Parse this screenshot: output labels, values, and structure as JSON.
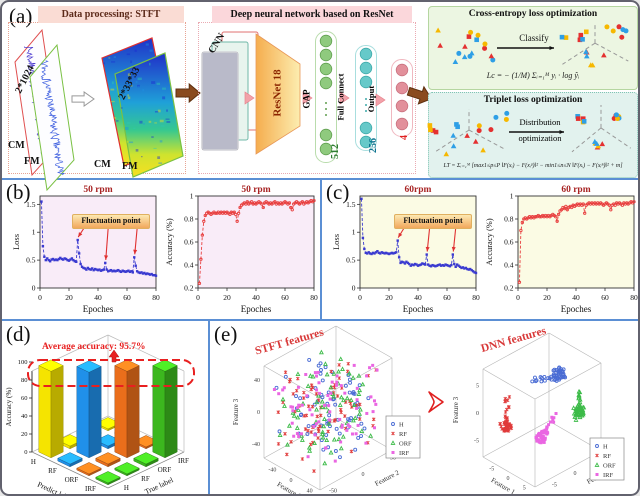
{
  "figure": {
    "background": "#ffffff",
    "divider_color": "#5b8fd4"
  },
  "panels": {
    "a": {
      "label": "(a)",
      "stft": {
        "title": "Data processing: STFT",
        "input_dim": "2*1024",
        "cm": "CM",
        "fm": "FM",
        "output_dim": "2*33*33",
        "cm2": "CM",
        "fm2": "FM"
      },
      "dnn": {
        "title": "Deep neural network based on ResNet",
        "cnn": "CNN",
        "resnet": "ResNet 18",
        "gap": "GAP",
        "fc": "Full Connect",
        "out": "Output",
        "n512": "512",
        "n256": "256",
        "n4": "4"
      },
      "ce": {
        "title": "Cross-entropy loss optimization",
        "classify": "Classify",
        "formula": "Lc = − (1/M) Σᵢ₌₁ᴹ yᵢ · log ŷᵢ"
      },
      "triplet": {
        "title": "Triplet loss optimization",
        "dist1": "Distribution",
        "dist2": "optimization",
        "formula": "LT = Σᵢ₌₁ᴹ [max1≤p≤P ‖F(xᵢ) − F(xᵢᵖ)‖² − min1≤n≤N ‖F(xᵢ) − F(xᵢⁿ)‖² + m]"
      }
    },
    "b": {
      "label": "(b)",
      "fluctuation": "Fluctuation point"
    },
    "c": {
      "label": "(c)",
      "fluctuation": "Fluctuation point"
    },
    "d": {
      "label": "(d)",
      "avg_text": "Average accuracy: 95.7%"
    },
    "e": {
      "label": "(e)",
      "stft_title": "STFT features",
      "dnn_title": "DNN features"
    }
  },
  "class_colors": {
    "H": "#4a6cd4",
    "RF": "#e03a3a",
    "ORF": "#3cbb48",
    "IRF": "#ea66e2"
  },
  "bar_colors": {
    "H": "#ffee00",
    "RF": "#2196f3",
    "ORF": "#f4731c",
    "IRF": "#3fbf1f"
  },
  "shape_colors": [
    "#e43030",
    "#f6b800",
    "#2e9fe6"
  ],
  "chart_data": [
    {
      "type": "line",
      "name": "loss_50rpm",
      "title": "50 rpm",
      "xlabel": "Epoches",
      "ylabel": "Loss",
      "xlim": [
        0,
        80
      ],
      "ylim": [
        0,
        1.65
      ],
      "xticks": [
        0,
        20,
        40,
        60,
        80
      ],
      "yticks": [
        0,
        0.5,
        1,
        1.5
      ],
      "color": "#3a3ad0",
      "bg": "#f9ecf8",
      "fluctuation_epochs": [
        26,
        45,
        65
      ],
      "values": [
        1.55,
        0.75,
        0.56,
        0.5,
        0.53,
        0.5,
        0.48,
        0.51,
        0.52,
        0.5,
        0.51,
        0.5,
        0.52,
        0.54,
        0.52,
        0.51,
        0.53,
        0.52,
        0.5,
        0.49,
        0.51,
        0.53,
        0.5,
        0.48,
        0.47,
        0.86,
        0.62,
        0.43,
        0.38,
        0.36,
        0.35,
        0.33,
        0.36,
        0.34,
        0.33,
        0.35,
        0.32,
        0.34,
        0.33,
        0.32,
        0.33,
        0.31,
        0.32,
        0.33,
        0.45,
        0.33,
        0.3,
        0.31,
        0.32,
        0.3,
        0.31,
        0.3,
        0.31,
        0.32,
        0.3,
        0.29,
        0.31,
        0.3,
        0.29,
        0.3,
        0.31,
        0.29,
        0.3,
        0.28,
        0.55,
        0.4,
        0.3,
        0.28,
        0.27,
        0.28,
        0.26,
        0.27,
        0.25,
        0.26,
        0.25,
        0.24,
        0.25,
        0.23,
        0.23,
        0.22
      ]
    },
    {
      "type": "line",
      "name": "accuracy_50rpm",
      "title": "50 rpm",
      "xlabel": "Epoches",
      "ylabel": "Accuracy (%)",
      "xlim": [
        0,
        80
      ],
      "ylim": [
        0.2,
        1.0
      ],
      "xticks": [
        0,
        20,
        40,
        60,
        80
      ],
      "yticks": [
        0.2,
        0.4,
        0.6,
        0.8,
        1
      ],
      "color": "#e84040",
      "bg": "#f9ecf8",
      "values": [
        0.24,
        0.45,
        0.66,
        0.78,
        0.83,
        0.85,
        0.86,
        0.85,
        0.84,
        0.85,
        0.86,
        0.85,
        0.85,
        0.86,
        0.85,
        0.86,
        0.85,
        0.86,
        0.85,
        0.86,
        0.85,
        0.84,
        0.86,
        0.85,
        0.86,
        0.84,
        0.78,
        0.85,
        0.9,
        0.92,
        0.93,
        0.94,
        0.93,
        0.95,
        0.93,
        0.94,
        0.95,
        0.93,
        0.94,
        0.93,
        0.94,
        0.95,
        0.94,
        0.93,
        0.9,
        0.94,
        0.95,
        0.94,
        0.93,
        0.94,
        0.93,
        0.94,
        0.95,
        0.93,
        0.94,
        0.93,
        0.94,
        0.93,
        0.94,
        0.95,
        0.94,
        0.93,
        0.94,
        0.9,
        0.88,
        0.93,
        0.94,
        0.95,
        0.94,
        0.93,
        0.94,
        0.95,
        0.93,
        0.94,
        0.95,
        0.94,
        0.95,
        0.96,
        0.95,
        0.96
      ]
    },
    {
      "type": "line",
      "name": "loss_60rpm",
      "title": "60rpm",
      "xlabel": "Epoches",
      "ylabel": "Loss",
      "xlim": [
        0,
        80
      ],
      "ylim": [
        0,
        1.65
      ],
      "xticks": [
        0,
        20,
        40,
        60,
        80
      ],
      "yticks": [
        0,
        0.5,
        1,
        1.5
      ],
      "color": "#3a3ad0",
      "bg": "#fbfbe4",
      "fluctuation_epochs": [
        26,
        46,
        64
      ],
      "values": [
        1.6,
        0.9,
        0.7,
        0.63,
        0.62,
        0.64,
        0.62,
        0.61,
        0.63,
        0.62,
        0.64,
        0.66,
        0.63,
        0.62,
        0.64,
        0.63,
        0.62,
        0.63,
        0.62,
        0.61,
        0.62,
        0.63,
        0.62,
        0.63,
        0.64,
        0.85,
        0.55,
        0.45,
        0.47,
        0.46,
        0.44,
        0.47,
        0.45,
        0.43,
        0.4,
        0.42,
        0.41,
        0.43,
        0.42,
        0.4,
        0.41,
        0.42,
        0.44,
        0.43,
        0.42,
        0.6,
        0.42,
        0.4,
        0.39,
        0.41,
        0.4,
        0.39,
        0.4,
        0.41,
        0.42,
        0.4,
        0.41,
        0.4,
        0.42,
        0.41,
        0.4,
        0.39,
        0.41,
        0.6,
        0.43,
        0.38,
        0.42,
        0.4,
        0.38,
        0.36,
        0.37,
        0.35,
        0.36,
        0.34,
        0.33,
        0.34,
        0.32,
        0.3,
        0.28,
        0.27
      ]
    },
    {
      "type": "line",
      "name": "accuracy_60rpm",
      "title": "60 rpm",
      "xlabel": "Epoches",
      "ylabel": "Accuracy (%)",
      "xlim": [
        0,
        80
      ],
      "ylim": [
        0.2,
        1.0
      ],
      "xticks": [
        0,
        20,
        40,
        60,
        80
      ],
      "yticks": [
        0.2,
        0.4,
        0.6,
        0.8,
        1
      ],
      "color": "#e84040",
      "bg": "#fbfbe4",
      "values": [
        0.25,
        0.7,
        0.77,
        0.8,
        0.81,
        0.8,
        0.81,
        0.82,
        0.81,
        0.82,
        0.81,
        0.82,
        0.82,
        0.83,
        0.82,
        0.82,
        0.83,
        0.82,
        0.83,
        0.82,
        0.83,
        0.82,
        0.83,
        0.84,
        0.83,
        0.82,
        0.78,
        0.84,
        0.87,
        0.88,
        0.9,
        0.89,
        0.91,
        0.88,
        0.9,
        0.91,
        0.9,
        0.92,
        0.91,
        0.92,
        0.93,
        0.92,
        0.93,
        0.92,
        0.93,
        0.85,
        0.92,
        0.93,
        0.94,
        0.93,
        0.94,
        0.93,
        0.94,
        0.93,
        0.94,
        0.93,
        0.94,
        0.93,
        0.92,
        0.93,
        0.94,
        0.93,
        0.92,
        0.88,
        0.92,
        0.93,
        0.92,
        0.94,
        0.93,
        0.94,
        0.93,
        0.92,
        0.94,
        0.93,
        0.94,
        0.93,
        0.94,
        0.95,
        0.94,
        0.95
      ]
    },
    {
      "type": "bar3d",
      "name": "confusion_matrix",
      "zlabel": "Accuracy (%)",
      "predict_axis_label": "Predict label",
      "true_axis_label": "True label",
      "categories": [
        "H",
        "RF",
        "ORF",
        "IRF"
      ],
      "zticks": [
        0,
        20,
        40,
        60,
        80,
        100
      ],
      "average_accuracy": 95.7,
      "values": [
        [
          96,
          3,
          2,
          2
        ],
        [
          3,
          95,
          3,
          2
        ],
        [
          2,
          3,
          96,
          2
        ],
        [
          2,
          2,
          3,
          96
        ]
      ]
    },
    {
      "type": "scatter3d",
      "name": "stft_features",
      "title": "STFT features",
      "xlabel": "Feature 1",
      "ylabel": "Feature 2",
      "zlabel": "Feature 3",
      "xticks": [
        -40,
        0,
        40
      ],
      "yticks": [
        -50,
        0,
        50
      ],
      "zticks": [
        -40,
        0,
        40
      ],
      "legend": [
        "H",
        "RF",
        "ORF",
        "IRF"
      ],
      "distribution": "mixed",
      "points_per_class": 72,
      "range": [
        -60,
        60
      ]
    },
    {
      "type": "scatter3d",
      "name": "dnn_features",
      "title": "DNN features",
      "xlabel": "Feature 1",
      "ylabel": "Feature 2",
      "zlabel": "Feature 3",
      "xticks": [
        -5,
        0,
        5
      ],
      "yticks": [
        -5,
        0,
        5
      ],
      "zticks": [
        5,
        0,
        -5
      ],
      "legend": [
        "H",
        "RF",
        "ORF",
        "IRF"
      ],
      "distribution": "clustered",
      "range": [
        -8,
        8
      ],
      "clusters": [
        {
          "label": "H",
          "center": [
            0.5,
            3.5,
            5.2
          ]
        },
        {
          "label": "RF",
          "center": [
            -6.5,
            -3.5,
            -4.0
          ]
        },
        {
          "label": "ORF",
          "center": [
            5.5,
            4.5,
            -0.5
          ]
        },
        {
          "label": "IRF",
          "center": [
            0.5,
            -0.5,
            -4.5
          ]
        }
      ]
    }
  ]
}
